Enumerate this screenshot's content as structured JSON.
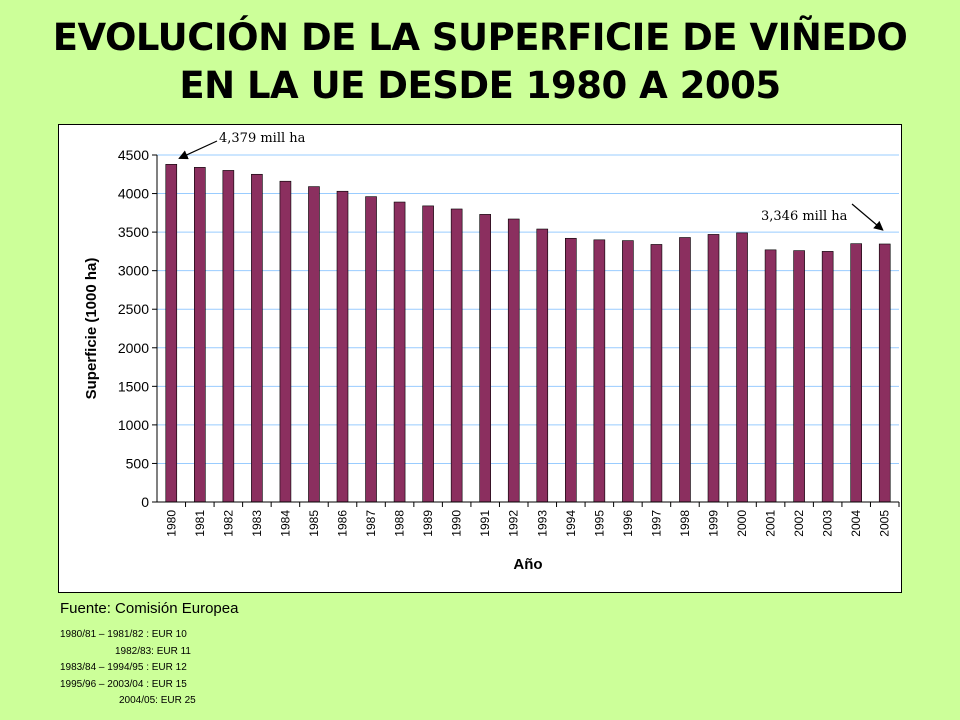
{
  "title_line1": "EVOLUCIÓN DE LA SUPERFICIE DE VIÑEDO",
  "title_line2": "EN LA UE DESDE 1980 A 2005",
  "source": "Fuente: Comisión Europea",
  "notes": [
    "1980/81 – 1981/82 : EUR 10",
    "1982/83: EUR 11",
    "1983/84 – 1994/95 : EUR 12",
    "1995/96 – 2003/04 : EUR 15",
    "2004/05: EUR 25"
  ],
  "colors": {
    "background": "#ccff99",
    "bar": "#8b2f5f",
    "gridline": "#99ccff"
  },
  "chart_data": {
    "type": "bar",
    "xlabel": "Año",
    "ylabel": "Superficie (1000 ha)",
    "ylim": [
      0,
      4500
    ],
    "yticks": [
      0,
      500,
      1000,
      1500,
      2000,
      2500,
      3000,
      3500,
      4000,
      4500
    ],
    "grid": true,
    "categories": [
      "1980",
      "1981",
      "1982",
      "1983",
      "1984",
      "1985",
      "1986",
      "1987",
      "1988",
      "1989",
      "1990",
      "1991",
      "1992",
      "1993",
      "1994",
      "1995",
      "1996",
      "1997",
      "1998",
      "1999",
      "2000",
      "2001",
      "2002",
      "2003",
      "2004",
      "2005"
    ],
    "values": [
      4379,
      4340,
      4300,
      4250,
      4160,
      4090,
      4030,
      3960,
      3890,
      3840,
      3800,
      3730,
      3670,
      3540,
      3420,
      3400,
      3390,
      3340,
      3430,
      3470,
      3490,
      3270,
      3260,
      3250,
      3350,
      3346
    ],
    "annotations": [
      {
        "text": "4,379 mill ha",
        "category": "1980"
      },
      {
        "text": "3,346 mill ha",
        "category": "2005"
      }
    ]
  }
}
